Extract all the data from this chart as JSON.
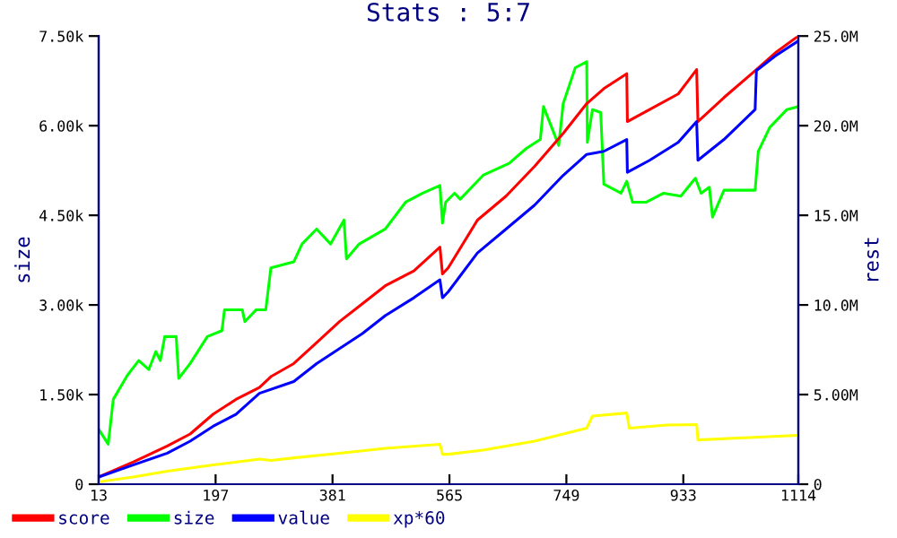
{
  "chart_data": {
    "type": "line",
    "title": "Stats : 5:7",
    "ylabel": "size",
    "y2label": "rest",
    "xlim": [
      13,
      1114
    ],
    "xticks": [
      13,
      197,
      381,
      565,
      749,
      933,
      1114
    ],
    "ylim": [
      0,
      7500
    ],
    "yticks": [
      0,
      {
        "value": 1500,
        "label": "1.50k"
      },
      {
        "value": 3000,
        "label": "3.00k"
      },
      {
        "value": 4500,
        "label": "4.50k"
      },
      {
        "value": 6000,
        "label": "6.00k"
      },
      {
        "value": 7500,
        "label": "7.50k"
      }
    ],
    "y2lim": [
      0,
      25000000
    ],
    "y2ticks": [
      0,
      {
        "value": 5000000,
        "label": "5.00M"
      },
      {
        "value": 10000000,
        "label": "10.0M"
      },
      {
        "value": 15000000,
        "label": "15.0M"
      },
      {
        "value": 20000000,
        "label": "20.0M"
      },
      {
        "value": 25000000,
        "label": "25.0M"
      }
    ],
    "grid": false,
    "legend": "bottom",
    "series": [
      {
        "name": "score",
        "color": "#ff0000",
        "axis": "y2",
        "x": [
          13,
          67,
          121,
          157,
          193,
          229,
          266,
          284,
          320,
          356,
          392,
          428,
          464,
          509,
          550,
          554,
          563,
          609,
          654,
          699,
          744,
          781,
          808,
          844,
          845,
          880,
          925,
          954,
          956,
          997,
          1046,
          1078,
          1114
        ],
        "values": [
          400000,
          1230000,
          2130000,
          2800000,
          3900000,
          4730000,
          5400000,
          6000000,
          6730000,
          7900000,
          9070000,
          10070000,
          11070000,
          11900000,
          13230000,
          11730000,
          12070000,
          14730000,
          16070000,
          17730000,
          19570000,
          21230000,
          22070000,
          22900000,
          20230000,
          20900000,
          21770000,
          23130000,
          20230000,
          21570000,
          23070000,
          24070000,
          25000000
        ]
      },
      {
        "name": "size",
        "color": "#00ff00",
        "axis": "y",
        "x": [
          13,
          28,
          36,
          58,
          76,
          92,
          103,
          110,
          117,
          135,
          139,
          157,
          184,
          207,
          211,
          239,
          243,
          261,
          276,
          284,
          320,
          333,
          356,
          378,
          399,
          403,
          423,
          464,
          496,
          523,
          550,
          554,
          559,
          573,
          582,
          618,
          659,
          686,
          708,
          713,
          737,
          744,
          763,
          781,
          782,
          790,
          803,
          808,
          835,
          844,
          853,
          875,
          902,
          929,
          952,
          961,
          974,
          979,
          997,
          1046,
          1051,
          1069,
          1096,
          1114
        ],
        "values": [
          920,
          670,
          1420,
          1820,
          2070,
          1920,
          2220,
          2070,
          2470,
          2470,
          1770,
          2020,
          2470,
          2570,
          2920,
          2920,
          2720,
          2920,
          2920,
          3620,
          3720,
          4020,
          4270,
          4020,
          4420,
          3770,
          4020,
          4270,
          4720,
          4870,
          5000,
          4370,
          4720,
          4870,
          4770,
          5170,
          5370,
          5620,
          5770,
          6320,
          5670,
          6370,
          6970,
          7070,
          5720,
          6270,
          6220,
          5020,
          4870,
          5070,
          4720,
          4720,
          4870,
          4820,
          5120,
          4870,
          4970,
          4470,
          4920,
          4920,
          5570,
          5970,
          6270,
          6320
        ]
      },
      {
        "name": "value",
        "color": "#0000ff",
        "axis": "y2",
        "x": [
          13,
          67,
          121,
          157,
          193,
          229,
          266,
          320,
          356,
          392,
          428,
          464,
          509,
          550,
          554,
          563,
          609,
          654,
          699,
          744,
          781,
          808,
          844,
          845,
          880,
          925,
          954,
          956,
          997,
          1046,
          1048,
          1078,
          1114
        ],
        "values": [
          400000,
          1070000,
          1730000,
          2400000,
          3230000,
          3900000,
          5070000,
          5730000,
          6730000,
          7570000,
          8400000,
          9400000,
          10400000,
          11400000,
          10400000,
          10730000,
          12900000,
          14230000,
          15570000,
          17230000,
          18400000,
          18570000,
          19230000,
          17400000,
          18070000,
          19070000,
          20230000,
          18070000,
          19230000,
          20900000,
          23070000,
          23900000,
          24730000
        ]
      },
      {
        "name": "xp*60",
        "color": "#ffff00",
        "axis": "y2",
        "x": [
          13,
          67,
          121,
          193,
          266,
          284,
          320,
          392,
          464,
          550,
          554,
          563,
          618,
          654,
          699,
          744,
          781,
          790,
          844,
          848,
          907,
          954,
          956,
          1051,
          1114
        ],
        "values": [
          130000,
          400000,
          730000,
          1070000,
          1400000,
          1330000,
          1470000,
          1730000,
          2000000,
          2230000,
          1670000,
          1670000,
          1900000,
          2130000,
          2400000,
          2800000,
          3130000,
          3800000,
          3970000,
          3130000,
          3300000,
          3330000,
          2470000,
          2630000,
          2730000
        ]
      }
    ]
  }
}
